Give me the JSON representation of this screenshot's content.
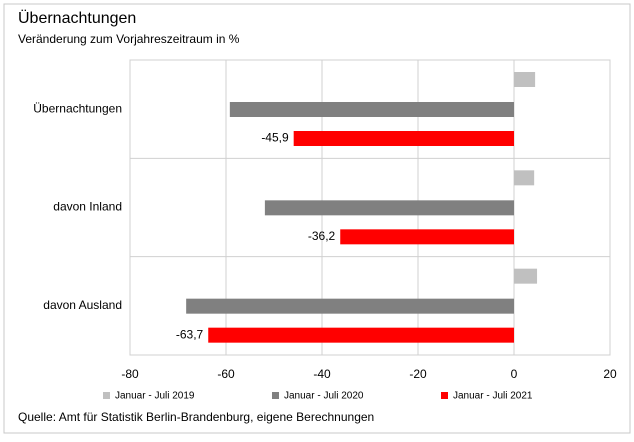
{
  "chart_data": {
    "type": "hbar",
    "title": "Übernachtungen",
    "subtitle": "Veränderung zum Vorjahreszeitraum  in %",
    "source": "Quelle: Amt für Statistik Berlin-Brandenburg, eigene Berechnungen",
    "categories": [
      "Übernachtungen",
      "davon Inland",
      "davon Ausland"
    ],
    "series": [
      {
        "name": "Januar - Juli 2019",
        "color": "#c0c0c0",
        "values": [
          4.4,
          4.2,
          4.8
        ]
      },
      {
        "name": "Januar - Juli 2020",
        "color": "#808080",
        "values": [
          -59.2,
          -51.9,
          -68.3
        ]
      },
      {
        "name": "Januar - Juli 2021",
        "color": "#ff0000",
        "values": [
          -45.9,
          -36.2,
          -63.7
        ],
        "value_labels": [
          "-45,9",
          "-36,2",
          "-63,7"
        ]
      }
    ],
    "xlim": [
      -80,
      20
    ],
    "xticks": [
      -80,
      -60,
      -40,
      -20,
      0,
      20
    ],
    "grid": true
  }
}
